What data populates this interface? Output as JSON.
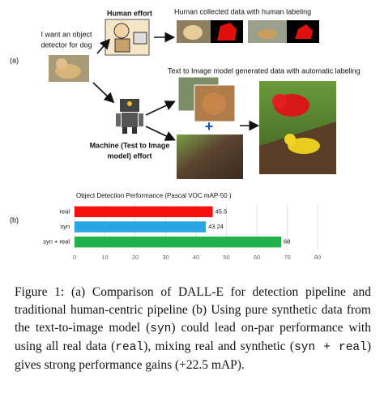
{
  "figure": {
    "panel_a_label": "(a)",
    "panel_b_label": "(b)",
    "human_effort": "Human effort",
    "request": [
      "I want an object",
      "detector for dog"
    ],
    "human_data": "Human collected data with human labeling",
    "generated_data": "Text to Image model generated data with automatic labeling",
    "machine_effort": [
      "Machine (Test to Image",
      "model) effort"
    ]
  },
  "chart_data": {
    "type": "hbar",
    "title": "Object Detection Performance (Pascal VOC mAP-50 )",
    "categories": [
      "real",
      "syn",
      "syn + real"
    ],
    "values": [
      45.5,
      43.24,
      68
    ],
    "colors": [
      "#f50f0f",
      "#2aa6e6",
      "#22b14c"
    ],
    "xlim": [
      0,
      80
    ],
    "xticks": [
      0,
      10,
      20,
      30,
      40,
      50,
      60,
      70,
      80
    ],
    "grid": true
  },
  "caption": {
    "parts": [
      {
        "text": "Figure 1: (a) Comparison of DALL-E for detection pipeline and traditional human-centric pipeline (b) Using pure synthetic data from the text-to-image model (",
        "mono": false
      },
      {
        "text": "syn",
        "mono": true
      },
      {
        "text": ") could lead on-par performance with using all real data (",
        "mono": false
      },
      {
        "text": "real",
        "mono": true
      },
      {
        "text": "), mixing real and synthetic (",
        "mono": false
      },
      {
        "text": "syn + real",
        "mono": true
      },
      {
        "text": ") gives strong performance gains (+22.5 mAP).",
        "mono": false
      }
    ]
  }
}
